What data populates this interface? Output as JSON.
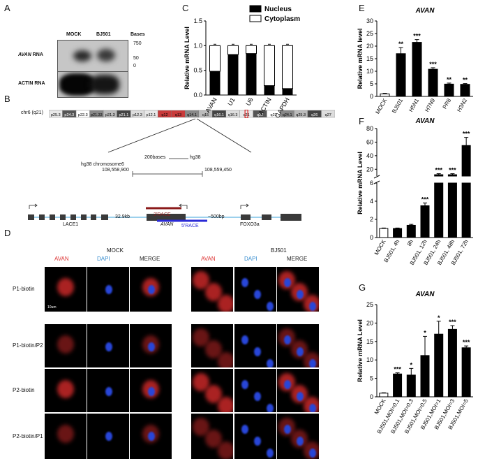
{
  "panels": {
    "A": "A",
    "B": "B",
    "C": "C",
    "D": "D",
    "E": "E",
    "F": "F",
    "G": "G"
  },
  "panelA": {
    "lanes": [
      "MOCK",
      "BJ501"
    ],
    "bases_header": "Bases",
    "markers": [
      "750",
      "50",
      "0"
    ],
    "row1_prefix": "AVAN",
    "row1_suffix": " RNA",
    "row2": "ACTIN RNA"
  },
  "panelB": {
    "chrom_label": "chr6 (q21)",
    "bands": [
      "p25.3",
      "p24.3",
      "p22.3",
      "p21.33",
      "p21.3",
      "p21.1",
      "p12.3",
      "p12.1",
      "q12",
      "q13",
      "q14.1",
      "q15",
      "q16.1",
      "q16.3",
      "q21",
      "q22",
      "q23",
      "q24.1",
      "q25.3",
      "q26",
      "q27"
    ],
    "scale": "200bases",
    "assembly": "hg38",
    "coords_label": "hg38 chromosome6",
    "coord_start": "108,558,900",
    "coord_end": "108,559,450",
    "gene_left": "LACE1",
    "gap1": "32.9kb",
    "gene_mid": "AVAN",
    "gap2": "~500bp",
    "gene_right": "FOXO3a",
    "race3": "3'RACE",
    "race5": "5'RACE",
    "colors": {
      "race3": "#8b1a1a",
      "race5": "#2a2ad6",
      "line": "#3aa0d8"
    }
  },
  "panelD": {
    "group_left": "MOCK",
    "group_right": "BJ501",
    "channels": [
      "AVAN",
      "DAPI",
      "MERGE"
    ],
    "rows": [
      "P1-biotin",
      "P1-biotin/P2",
      "P2-biotin",
      "P2-biotin/P1"
    ],
    "scalebar": "10um"
  },
  "chart_data": [
    {
      "id": "C",
      "type": "bar",
      "stacked": true,
      "categories": [
        "AVAN",
        "U1",
        "U6",
        "ACTIN",
        "GAPDH"
      ],
      "series": [
        {
          "name": "Nucleus",
          "values": [
            0.48,
            0.82,
            0.84,
            0.19,
            0.13
          ],
          "color": "#000000"
        },
        {
          "name": "Cytoplasm",
          "values": [
            0.52,
            0.18,
            0.16,
            0.81,
            0.87
          ],
          "color": "#ffffff"
        }
      ],
      "ylabel": "Relative mRNA Level",
      "ylim": [
        0,
        1.5
      ],
      "yticks": [
        "0.0",
        "0.5",
        "1.0",
        "1.5"
      ],
      "legend": "top-right"
    },
    {
      "id": "E",
      "type": "bar",
      "title": "AVAN",
      "categories": [
        "MOCK",
        "BJ501",
        "H5N1",
        "H7N9",
        "PR8",
        "H3N2"
      ],
      "values": [
        1.0,
        17.0,
        21.5,
        10.8,
        4.9,
        4.8
      ],
      "errors": [
        0.2,
        2.4,
        1.1,
        0.6,
        0.4,
        0.3
      ],
      "sig": [
        "",
        "**",
        "***",
        "***",
        "**",
        "**"
      ],
      "ylabel": "Relative mRNA level",
      "ylim": [
        0,
        30
      ],
      "yticks": [
        "0",
        "5",
        "10",
        "15",
        "20",
        "25",
        "30"
      ]
    },
    {
      "id": "F",
      "type": "bar",
      "title": "AVAN",
      "categories": [
        "MOCK",
        "BJ501, 4h",
        "8h",
        "BJ501, 12h",
        "BJ501, 24h",
        "BJ501, 48h",
        "BJ501, 72h"
      ],
      "values": [
        1.0,
        1.0,
        1.35,
        3.5,
        12,
        12,
        55
      ],
      "errors": [
        0.05,
        0.05,
        0.1,
        0.3,
        1.5,
        1.5,
        12
      ],
      "sig": [
        "",
        "",
        "",
        "***",
        "***",
        "***",
        "***"
      ],
      "ylabel": "Relative mRNA Level",
      "ylim": [
        0,
        80
      ],
      "axis_break": [
        6,
        10
      ],
      "yticks_low": [
        "0",
        "2",
        "4",
        "6"
      ],
      "yticks_high": [
        "20",
        "40",
        "60",
        "80"
      ]
    },
    {
      "id": "G",
      "type": "bar",
      "title": "AVAN",
      "categories": [
        "MOCK",
        "BJ501,MOI=0.1",
        "BJ501,MOI=0.3",
        "BJ501,MOI=0.5",
        "BJ501,MOI=1",
        "BJ501,MOI=3",
        "BJ501,MOI=5"
      ],
      "values": [
        1.0,
        6.2,
        5.9,
        11.2,
        17.0,
        18.3,
        13.3
      ],
      "errors": [
        0.1,
        0.3,
        1.8,
        5.2,
        3.5,
        1.0,
        0.5
      ],
      "sig": [
        "",
        "***",
        "*",
        "*",
        "*",
        "***",
        "***"
      ],
      "ylabel": "Relative mRNA Level",
      "ylim": [
        0,
        25
      ],
      "yticks": [
        "0",
        "5",
        "10",
        "15",
        "20",
        "25"
      ]
    }
  ]
}
